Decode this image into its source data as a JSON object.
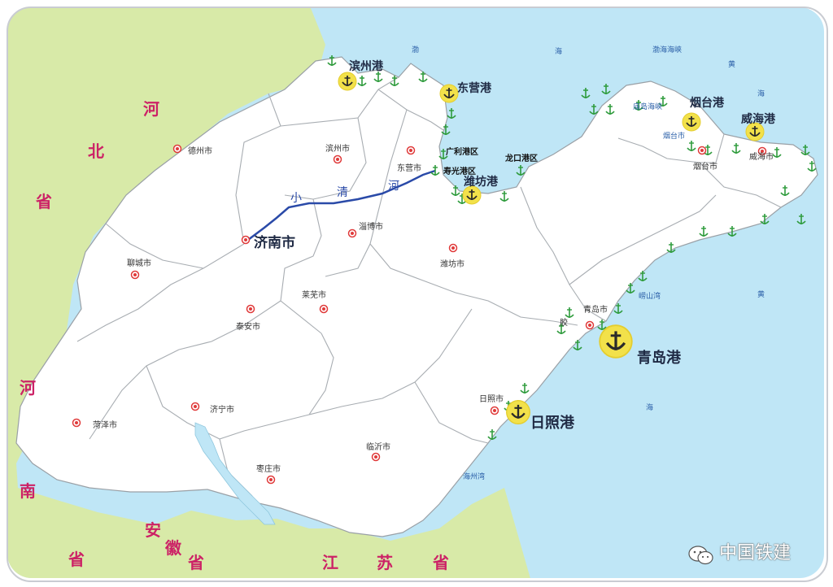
{
  "provinces": {
    "hebei": [
      "河",
      "北",
      "省"
    ],
    "henan": [
      "河",
      "南",
      "省"
    ],
    "anhui": [
      "安",
      "徽",
      "省"
    ],
    "jiangsu": [
      "江",
      "苏",
      "省"
    ]
  },
  "seas": {
    "bohai": [
      "渤",
      "海"
    ],
    "bohai_strait": "渤海海峡",
    "huanghai_upper": [
      "黄",
      "海"
    ],
    "huanghai_right": "黄",
    "huanghai_lower": "海",
    "miaodao_strait": "庙岛海峡",
    "jiaozhou_bay": "崂山湾",
    "haizhou_bay": "海州湾"
  },
  "capital": {
    "name": "济南市"
  },
  "cities": [
    "德州市",
    "滨州市",
    "东营市",
    "淄博市",
    "潍坊市",
    "聊城市",
    "莱芜市",
    "泰安市",
    "烟台市",
    "威海市",
    "青岛市",
    "济宁市",
    "菏泽市",
    "临沂市",
    "枣庄市",
    "日照市"
  ],
  "ports": {
    "binzhou": "滨州港",
    "dongying": "东营港",
    "weifang": "潍坊港",
    "yantai": "烟台港",
    "weihai": "威海港",
    "qingdao": "青岛港",
    "rizhao": "日照港"
  },
  "harbor_areas": [
    "广利港区",
    "寿光港区",
    "龙口港区"
  ],
  "river": [
    "小",
    "清",
    "河"
  ],
  "extra_labels": [
    "烟台市",
    "胶"
  ],
  "watermark": "中国铁建",
  "colors": {
    "sea": "#bfe6f6",
    "land": "#ffffff",
    "neighbor": "#d8eaa8",
    "border": "#a0a4a8",
    "river": "#2a4aa8",
    "province_text": "#cc2266",
    "anchor_circle": "#f2e14a",
    "green_anchor": "#2e9b3c"
  },
  "icons": {
    "port_marker": "anchor-icon",
    "city_marker": "red-dot-icon",
    "small_port": "green-anchor-icon"
  }
}
